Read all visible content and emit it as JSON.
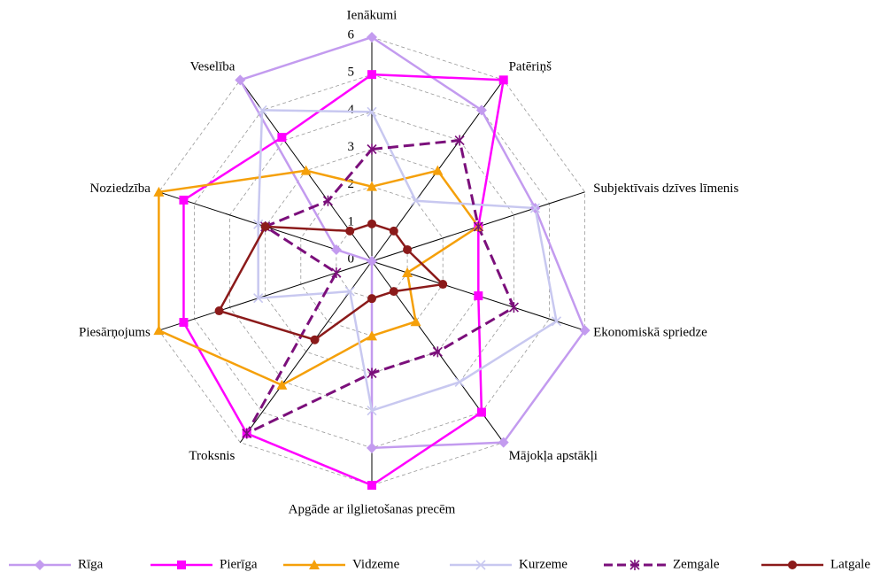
{
  "chart_data": {
    "type": "radar",
    "categories": [
      "Ienākumi",
      "Patēriņš",
      "Subjektīvais dzīves līmenis",
      "Ekonomiskā spriedze",
      "Mājokļa apstākļi",
      "Apgāde ar ilglietošanas precēm",
      "Troksnis",
      "Piesārņojums",
      "Noziedzība",
      "Veselība"
    ],
    "ylim": [
      0,
      6
    ],
    "yticks": [
      0,
      1,
      2,
      3,
      4,
      5,
      6
    ],
    "grid": true,
    "legend": "bottom",
    "series": [
      {
        "name": "Rīga",
        "color": "#c39bef",
        "marker": "diamond",
        "values": [
          6,
          5,
          4.6,
          6,
          6,
          5,
          0,
          0,
          1,
          6
        ]
      },
      {
        "name": "Pierīga",
        "color": "#ff00ff",
        "marker": "square",
        "values": [
          5,
          6,
          3,
          3,
          5,
          6,
          5.7,
          5.3,
          5.3,
          4.1
        ]
      },
      {
        "name": "Vidzeme",
        "color": "#f5a00a",
        "marker": "triangle",
        "values": [
          2,
          3,
          3,
          1,
          2,
          2,
          4.1,
          6,
          6,
          3
        ]
      },
      {
        "name": "Kurzeme",
        "color": "#c8c8f0",
        "marker": "x",
        "values": [
          4,
          2,
          4.6,
          5.2,
          4,
          4,
          1,
          3.2,
          3.2,
          5
        ]
      },
      {
        "name": "Zemgale",
        "color": "#7b0f7b",
        "marker": "asterisk",
        "dashed": true,
        "values": [
          3,
          4,
          3,
          4,
          3,
          3,
          5.7,
          1,
          3,
          2
        ]
      },
      {
        "name": "Latgale",
        "color": "#8b1a1a",
        "marker": "circle",
        "values": [
          1,
          1,
          1,
          2,
          1,
          1,
          2.6,
          4.3,
          3,
          1
        ]
      }
    ]
  }
}
